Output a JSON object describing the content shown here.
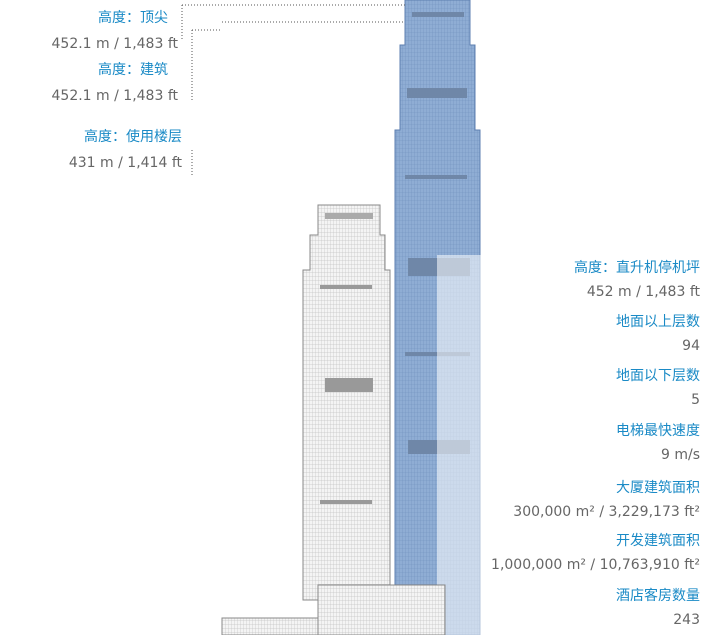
{
  "left_labels": [
    {
      "label": "高度：顶尖",
      "value": "452.1 m / 1,483 ft"
    },
    {
      "label": "高度：建筑",
      "value": "452.1 m / 1,483 ft"
    },
    {
      "label": "高度：使用楼层",
      "value": "431 m / 1,414 ft"
    }
  ],
  "stats": [
    {
      "label": "高度：直升机停机坪",
      "value": "452 m / 1,483 ft"
    },
    {
      "label": "地面以上层数",
      "value": "94"
    },
    {
      "label": "地面以下层数",
      "value": "5"
    },
    {
      "label": "电梯最快速度",
      "value": "9 m/s"
    },
    {
      "label": "大厦建筑面积",
      "value": "300,000 m² / 3,229,173 ft²"
    },
    {
      "label": "开发建筑面积",
      "value": "1,000,000 m² / 10,763,910 ft²"
    },
    {
      "label": "酒店客房数量",
      "value": "243"
    }
  ]
}
